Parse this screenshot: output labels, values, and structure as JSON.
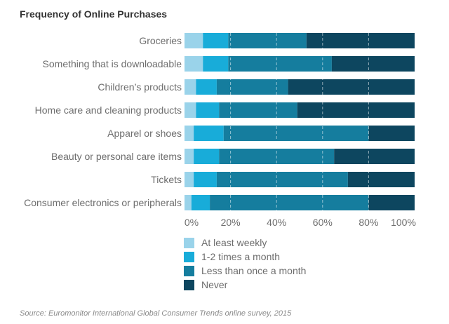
{
  "title": "Frequency of Online Purchases",
  "source": "Source: Euromonitor International Global Consumer Trends online survey, 2015",
  "chart_data": {
    "type": "bar",
    "orientation": "horizontal",
    "stacked": true,
    "title": "Frequency of Online Purchases",
    "categories": [
      "Groceries",
      "Something that is downloadable",
      "Children’s products",
      "Home care and cleaning products",
      "Apparel or shoes",
      "Beauty or personal care items",
      "Tickets",
      "Consumer electronics or peripherals"
    ],
    "series": [
      {
        "name": "At least weekly",
        "color": "#9ad3ea",
        "values": [
          8,
          8,
          5,
          5,
          4,
          4,
          4,
          3
        ]
      },
      {
        "name": "1-2 times a month",
        "color": "#18acd9",
        "values": [
          11,
          11,
          9,
          10,
          13,
          11,
          10,
          8
        ]
      },
      {
        "name": "Less than once a month",
        "color": "#157d9e",
        "values": [
          34,
          45,
          31,
          34,
          63,
          50,
          57,
          69
        ]
      },
      {
        "name": "Never",
        "color": "#0d465f",
        "values": [
          47,
          36,
          55,
          51,
          20,
          35,
          29,
          20
        ]
      }
    ],
    "x_ticks": [
      "0%",
      "20%",
      "40%",
      "60%",
      "80%",
      "100%"
    ],
    "xlim": [
      0,
      100
    ],
    "grid": "vertical dashed",
    "legend_position": "bottom"
  }
}
